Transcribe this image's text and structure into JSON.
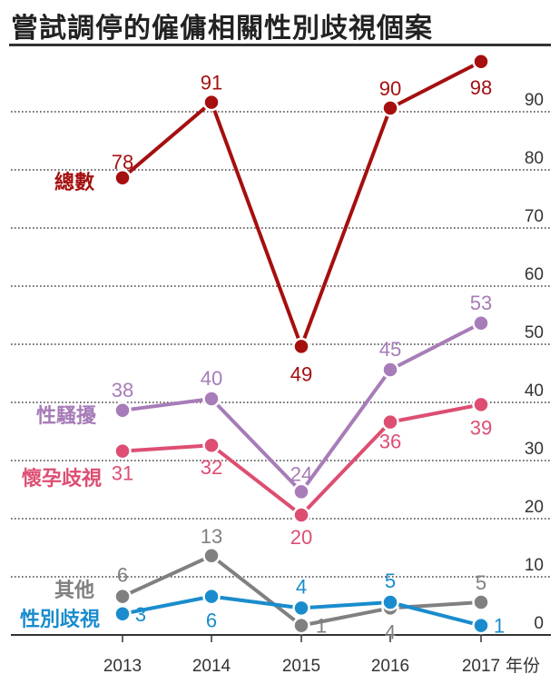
{
  "title": "嘗試調停的僱傭相關性別歧視個案",
  "chart_data": {
    "type": "line",
    "x": [
      "2013",
      "2014",
      "2015",
      "2016",
      "2017"
    ],
    "x_suffix": "年份",
    "ylim": [
      0,
      100
    ],
    "y_ticks": [
      0,
      10,
      20,
      30,
      40,
      50,
      60,
      70,
      80,
      90
    ],
    "grid": true,
    "series": [
      {
        "name": "總數",
        "color": "#a50f0f",
        "values": [
          78,
          91,
          49,
          90,
          98
        ]
      },
      {
        "name": "性騷擾",
        "color": "#a77cb8",
        "values": [
          38,
          40,
          24,
          45,
          53
        ]
      },
      {
        "name": "懷孕歧視",
        "color": "#dd4e72",
        "values": [
          31,
          32,
          20,
          36,
          39
        ]
      },
      {
        "name": "其他",
        "color": "#808080",
        "values": [
          6,
          13,
          1,
          4,
          5
        ]
      },
      {
        "name": "性別歧視",
        "color": "#1a8ccd",
        "values": [
          3,
          6,
          4,
          5,
          1
        ]
      }
    ]
  }
}
